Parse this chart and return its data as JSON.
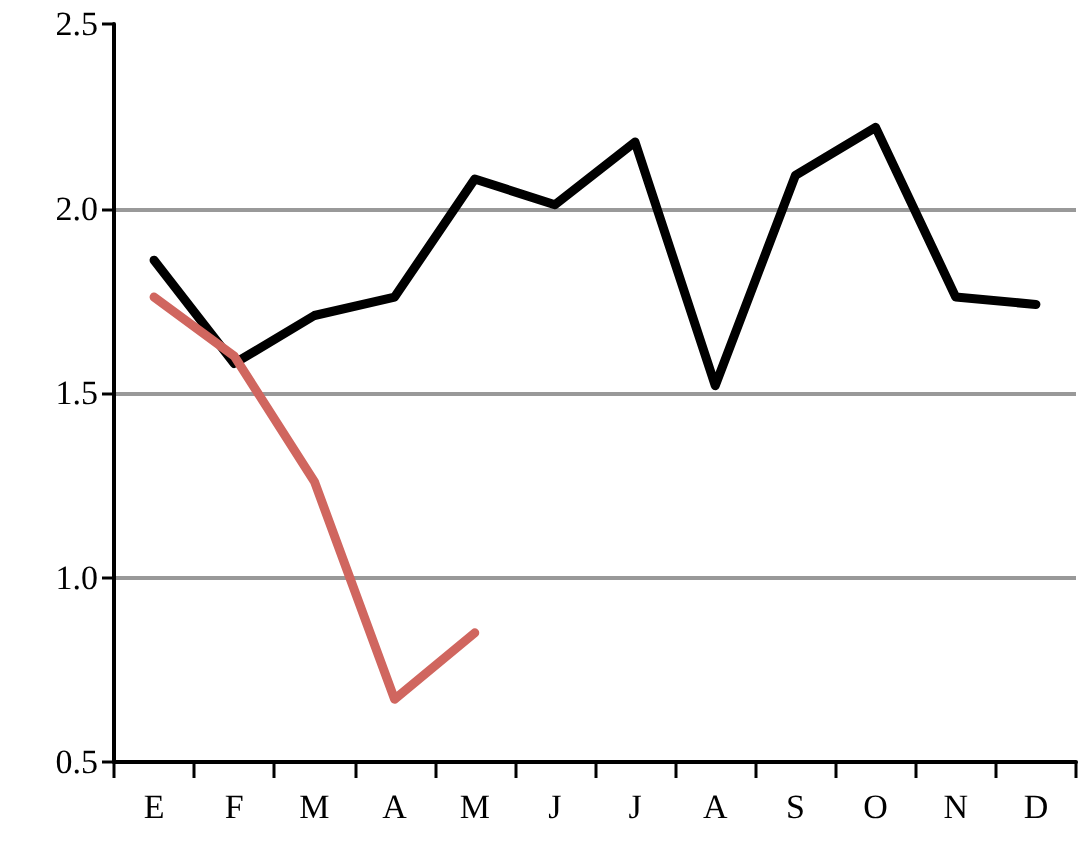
{
  "chart_data": {
    "type": "line",
    "categories": [
      "E",
      "F",
      "M",
      "A",
      "M",
      "J",
      "J",
      "A",
      "S",
      "O",
      "N",
      "D"
    ],
    "series": [
      {
        "color": "#000000",
        "values": [
          1.86,
          1.58,
          1.71,
          1.76,
          2.08,
          2.01,
          2.18,
          1.52,
          2.09,
          2.22,
          1.76,
          1.74
        ]
      },
      {
        "color": "#d0665f",
        "values": [
          1.76,
          1.6,
          1.26,
          0.67,
          0.85,
          null,
          null,
          null,
          null,
          null,
          null,
          null
        ]
      }
    ],
    "ylim": [
      0.5,
      2.5
    ],
    "yticks": [
      {
        "value": 0.5,
        "label": "0.5"
      },
      {
        "value": 1,
        "label": "1.0"
      },
      {
        "value": 1.5,
        "label": "1.5"
      },
      {
        "value": 2,
        "label": "2.0"
      },
      {
        "value": 2.5,
        "label": "2.5"
      }
    ],
    "grid": "y",
    "marker": "none",
    "line_style": "solid"
  }
}
